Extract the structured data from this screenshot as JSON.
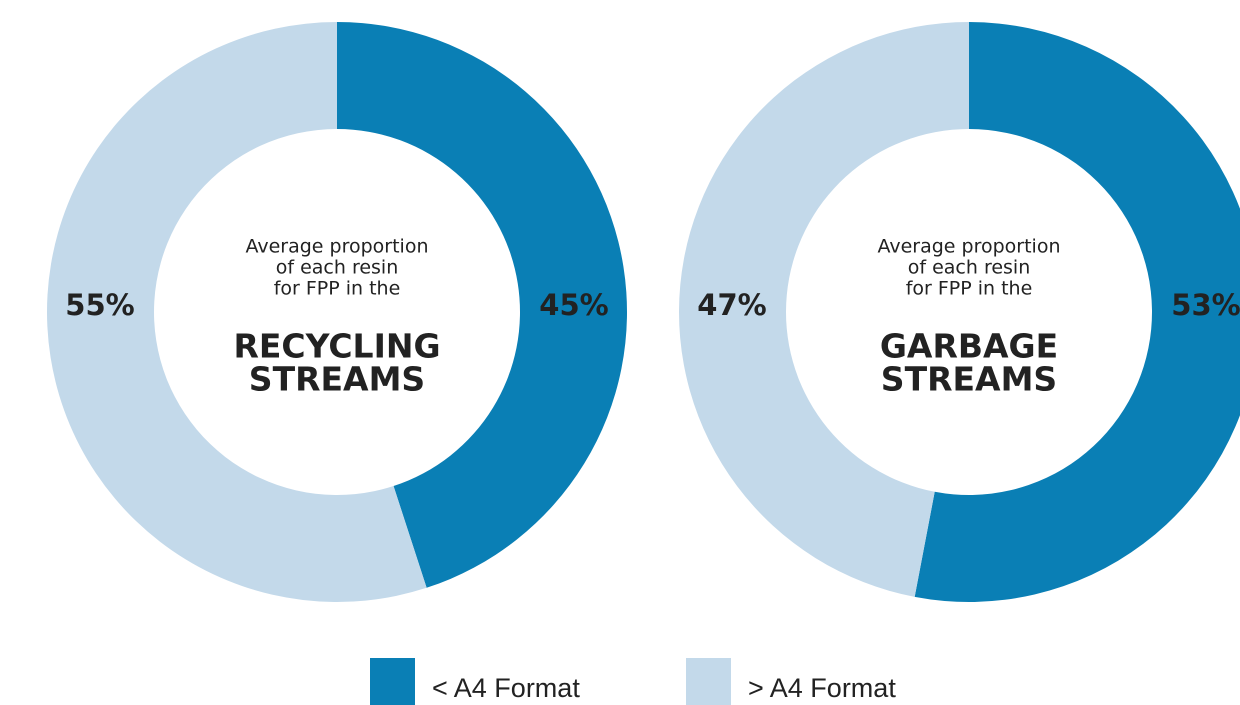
{
  "chart_data": [
    {
      "type": "donut",
      "center_lines": [
        "Average proportion",
        "of each resin",
        "for FPP in the"
      ],
      "title_lines": [
        "RECYCLING",
        "STREAMS"
      ],
      "values": [
        45,
        55
      ],
      "value_labels": [
        "45%",
        "55%"
      ]
    },
    {
      "type": "donut",
      "center_lines": [
        "Average proportion",
        "of each resin",
        "for FPP in the"
      ],
      "title_lines": [
        "GARBAGE",
        "STREAMS"
      ],
      "values": [
        53,
        47
      ],
      "value_labels": [
        "53%",
        "47%"
      ]
    }
  ],
  "legend": [
    {
      "name": "< A4 Format",
      "color": "#0a7fb5"
    },
    {
      "name": "> A4 Format",
      "color": "#c3d9ea"
    }
  ]
}
